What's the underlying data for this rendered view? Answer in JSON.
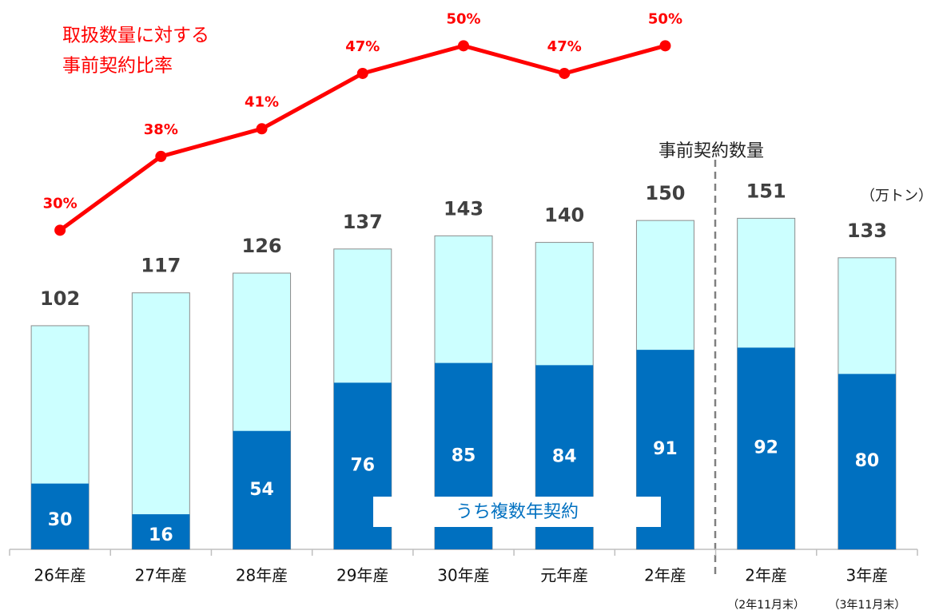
{
  "chart_data": {
    "type": "bar",
    "title": [
      "取扱数量に対する",
      "事前契約比率"
    ],
    "annotations": {
      "section": "事前契約数量",
      "unit": "（万トン）"
    },
    "categories": [
      "26年産",
      "27年産",
      "28年産",
      "29年産",
      "30年産",
      "元年産",
      "2年産",
      "2年産",
      "3年産"
    ],
    "category_notes": [
      null,
      null,
      null,
      null,
      null,
      null,
      null,
      "（2年11月末）",
      "（3年11月末）"
    ],
    "ylim": [
      0,
      236
    ],
    "y2lim": [
      -4.6,
      51.5
    ],
    "series": [
      {
        "color": "#ccffff",
        "values": [
          102,
          117,
          126,
          137,
          143,
          140,
          150,
          151,
          133
        ]
      },
      {
        "name": "うち複数年契約",
        "color": "#0070c0",
        "values": [
          30,
          16,
          54,
          76,
          85,
          84,
          91,
          92,
          80
        ]
      },
      {
        "type": "line",
        "axis": "y2",
        "color": "#ff0000",
        "values": [
          30,
          38,
          41,
          47,
          50,
          47,
          50,
          null,
          null
        ],
        "value_labels": [
          "30%",
          "38%",
          "41%",
          "47%",
          "50%",
          "47%",
          "50%",
          null,
          null
        ]
      }
    ]
  }
}
